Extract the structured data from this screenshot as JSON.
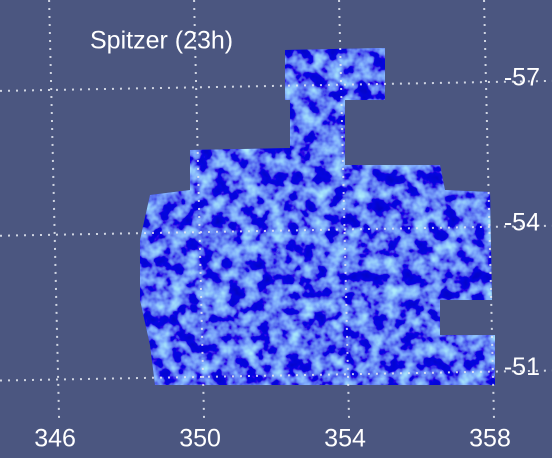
{
  "map": {
    "title": "Spitzer (23h)",
    "xlim": [
      344.48,
      359.71
    ],
    "xticks": [
      346,
      350,
      354,
      358
    ],
    "ylim": [
      -58.8,
      -50.1
    ],
    "yticks": [
      -57,
      -54,
      -51
    ]
  }
}
